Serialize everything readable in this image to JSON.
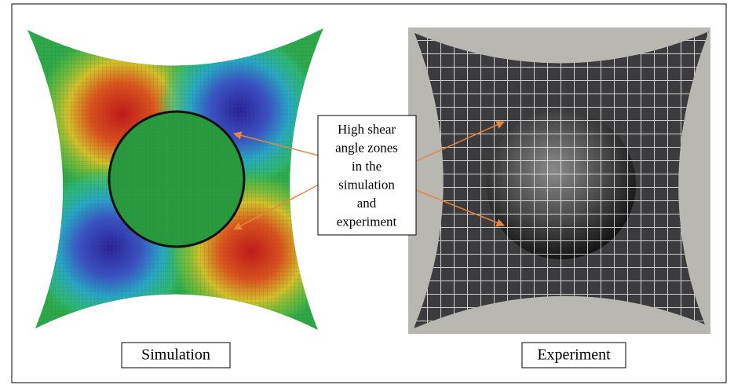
{
  "callout": {
    "lines": [
      "High shear",
      "angle zones",
      "in the",
      "simulation",
      "and",
      "experiment"
    ]
  },
  "captions": {
    "left": "Simulation",
    "right": "Experiment"
  }
}
